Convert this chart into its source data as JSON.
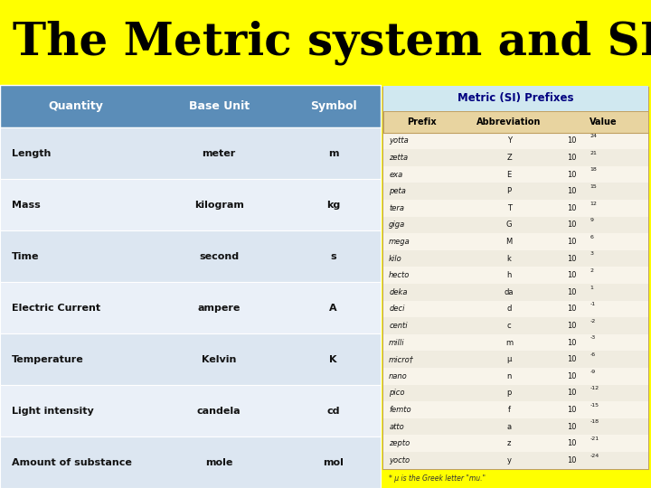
{
  "title": "The Metric system and SI UNITS",
  "title_bg": "#ffff00",
  "title_color": "#000000",
  "title_fontsize": 36,
  "left_table_header": [
    "Quantity",
    "Base Unit",
    "Symbol"
  ],
  "left_table_rows": [
    [
      "Length",
      "meter",
      "m"
    ],
    [
      "Mass",
      "kilogram",
      "kg"
    ],
    [
      "Time",
      "second",
      "s"
    ],
    [
      "Electric Current",
      "ampere",
      "A"
    ],
    [
      "Temperature",
      "Kelvin",
      "K"
    ],
    [
      "Light intensity",
      "candela",
      "cd"
    ],
    [
      "Amount of substance",
      "mole",
      "mol"
    ]
  ],
  "left_header_bg": "#5b8db8",
  "left_header_color": "#ffffff",
  "left_row_bg_odd": "#dce6f1",
  "left_row_bg_even": "#eaf0f8",
  "right_table_title": "Metric (SI) Prefixes",
  "right_table_header": [
    "Prefix",
    "Abbreviation",
    "Value"
  ],
  "right_table_rows": [
    [
      "yotta",
      "Y",
      "24"
    ],
    [
      "zetta",
      "Z",
      "21"
    ],
    [
      "exa",
      "E",
      "18"
    ],
    [
      "peta",
      "P",
      "15"
    ],
    [
      "tera",
      "T",
      "12"
    ],
    [
      "giga",
      "G",
      "9"
    ],
    [
      "mega",
      "M",
      "6"
    ],
    [
      "kilo",
      "k",
      "3"
    ],
    [
      "hecto",
      "h",
      "2"
    ],
    [
      "deka",
      "da",
      "1"
    ],
    [
      "deci",
      "d",
      "-1"
    ],
    [
      "centi",
      "c",
      "-2"
    ],
    [
      "milli",
      "m",
      "-3"
    ],
    [
      "micro†",
      "μ",
      "-6"
    ],
    [
      "nano",
      "n",
      "-9"
    ],
    [
      "pico",
      "p",
      "-12"
    ],
    [
      "femto",
      "f",
      "-15"
    ],
    [
      "atto",
      "a",
      "-18"
    ],
    [
      "zepto",
      "z",
      "-21"
    ],
    [
      "yocto",
      "y",
      "-24"
    ]
  ],
  "right_table_bg": "#f0ece0",
  "right_table_border": "#c0a060",
  "right_header_bg": "#e8d4a0",
  "right_title_bg": "#d0e8f0",
  "right_footnote": "* μ is the Greek letter \"mu.\""
}
